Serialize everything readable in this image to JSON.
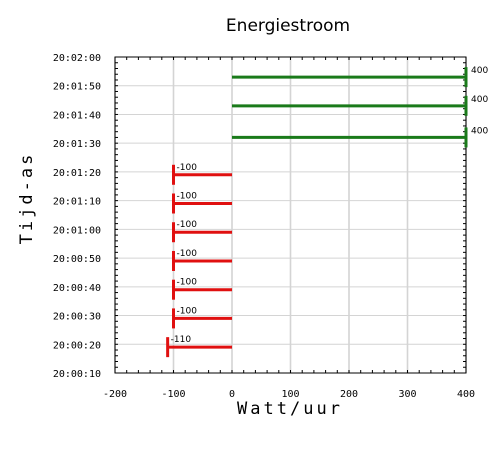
{
  "chart_data": {
    "type": "bar",
    "orientation": "horizontal",
    "title": "Energiestroom",
    "xlabel": "Watt/uur",
    "ylabel": "Tijd-as",
    "xlim": [
      -200,
      400
    ],
    "x_ticks": [
      "-200",
      "-100",
      "0",
      "100",
      "200",
      "300",
      "400"
    ],
    "y_ticks": [
      "20:02:00",
      "20:01:50",
      "20:01:40",
      "20:01:30",
      "20:01:20",
      "20:01:10",
      "20:01:00",
      "20:00:50",
      "20:00:40",
      "20:00:30",
      "20:00:20",
      "20:00:10"
    ],
    "grid": true,
    "colors": {
      "positive": "#1a7a1a",
      "negative": "#e01010",
      "grid": "#d4d4d4"
    },
    "bars": [
      {
        "time": "20:01:53",
        "value": 400,
        "label": "400"
      },
      {
        "time": "20:01:43",
        "value": 400,
        "label": "400"
      },
      {
        "time": "20:01:32",
        "value": 400,
        "label": "400"
      },
      {
        "time": "20:01:19",
        "value": -100,
        "label": "-100"
      },
      {
        "time": "20:01:09",
        "value": -100,
        "label": "-100"
      },
      {
        "time": "20:00:59",
        "value": -100,
        "label": "-100"
      },
      {
        "time": "20:00:49",
        "value": -100,
        "label": "-100"
      },
      {
        "time": "20:00:39",
        "value": -100,
        "label": "-100"
      },
      {
        "time": "20:00:29",
        "value": -100,
        "label": "-100"
      },
      {
        "time": "20:00:19",
        "value": -110,
        "label": "-110"
      }
    ]
  }
}
